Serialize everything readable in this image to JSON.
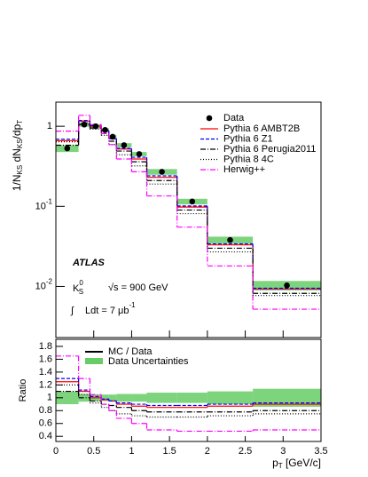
{
  "chart_data": [
    {
      "type": "step",
      "log_y": true,
      "ylabel_parts": [
        "1/N",
        "KS",
        " dN",
        "KS",
        "/dp",
        "T"
      ],
      "bins": [
        0,
        0.3,
        0.45,
        0.6,
        0.7,
        0.8,
        1.0,
        1.2,
        1.6,
        2.0,
        2.6,
        3.5
      ],
      "x": [
        0.15,
        0.375,
        0.525,
        0.65,
        0.75,
        0.9,
        1.1,
        1.4,
        1.8,
        2.3,
        3.05
      ],
      "data": {
        "name": "Data",
        "color": "#000000",
        "values": [
          0.53,
          1.05,
          1.0,
          0.9,
          0.74,
          0.58,
          0.45,
          0.27,
          0.115,
          0.038,
          0.0103
        ],
        "errors": [
          0.053,
          0.063,
          0.05,
          0.045,
          0.037,
          0.035,
          0.027,
          0.022,
          0.0092,
          0.0038,
          0.0014
        ],
        "band_color": "#66cc66"
      },
      "series": [
        {
          "name": "Pythia 6 AMBT2B",
          "color": "#ff0000",
          "dash": "none",
          "values": [
            0.66,
            1.16,
            1.0,
            0.87,
            0.7,
            0.52,
            0.39,
            0.23,
            0.098,
            0.033,
            0.0093
          ]
        },
        {
          "name": "Pythia 6 Z1",
          "color": "#0000ff",
          "dash": "4,2",
          "values": [
            0.69,
            1.18,
            1.02,
            0.88,
            0.7,
            0.53,
            0.41,
            0.24,
            0.101,
            0.034,
            0.0095
          ]
        },
        {
          "name": "Pythia 6 Perugia2011",
          "color": "#000000",
          "dash": "6,2,1,2",
          "values": [
            0.58,
            1.05,
            0.95,
            0.81,
            0.65,
            0.49,
            0.36,
            0.21,
            0.09,
            0.03,
            0.0082
          ]
        },
        {
          "name": "Pythia 8 4C",
          "color": "#000000",
          "dash": "1,2",
          "values": [
            0.64,
            1.1,
            0.92,
            0.77,
            0.59,
            0.44,
            0.32,
            0.19,
            0.081,
            0.027,
            0.0077
          ]
        },
        {
          "name": "Herwig++",
          "color": "#ff00ff",
          "dash": "6,2,1,2",
          "values": [
            0.87,
            1.37,
            1.05,
            0.81,
            0.59,
            0.39,
            0.27,
            0.135,
            0.055,
            0.018,
            0.0052
          ]
        }
      ],
      "xlim": [
        0,
        3.5
      ],
      "xticks": [
        0,
        0.5,
        1,
        1.5,
        2,
        2.5,
        3,
        3.5
      ],
      "ylim": [
        0.0023,
        2
      ],
      "yticks": [
        {
          "value": 0.01,
          "label": "10",
          "exponent": "-2"
        },
        {
          "value": 0.1,
          "label": "10",
          "exponent": "-1"
        },
        1
      ],
      "annotations": {
        "experiment": "ATLAS",
        "particle": "K",
        "particle_sub": "S",
        "particle_sup": "0",
        "energy": "√s = 900 GeV",
        "integral": "∫",
        "lumi": "Ldt = 7 μb",
        "lumi_sup": "-1"
      }
    },
    {
      "type": "ratio",
      "ylabel": "Ratio",
      "xlabel_parts": [
        "p",
        "T",
        " [GeV/c]"
      ],
      "legend": [
        "MC / Data",
        "Data Uncertainties"
      ],
      "uncertainty": [
        0.1,
        0.06,
        0.05,
        0.05,
        0.05,
        0.06,
        0.06,
        0.08,
        0.08,
        0.1,
        0.14
      ],
      "series": [
        {
          "color": "#ff0000",
          "dash": "none",
          "values": [
            1.25,
            1.1,
            1.0,
            0.97,
            0.95,
            0.9,
            0.87,
            0.85,
            0.85,
            0.87,
            0.9
          ]
        },
        {
          "color": "#0000ff",
          "dash": "4,2",
          "values": [
            1.3,
            1.12,
            1.02,
            0.98,
            0.95,
            0.92,
            0.9,
            0.88,
            0.88,
            0.9,
            0.92
          ]
        },
        {
          "color": "#000000",
          "dash": "6,2,1,2",
          "values": [
            1.1,
            1.0,
            0.95,
            0.9,
            0.88,
            0.85,
            0.8,
            0.78,
            0.78,
            0.78,
            0.8
          ]
        },
        {
          "color": "#000000",
          "dash": "1,2",
          "values": [
            1.2,
            1.05,
            0.92,
            0.85,
            0.8,
            0.75,
            0.72,
            0.7,
            0.7,
            0.72,
            0.75
          ]
        },
        {
          "color": "#ff00ff",
          "dash": "6,2,1,2",
          "values": [
            1.65,
            1.3,
            1.05,
            0.9,
            0.8,
            0.68,
            0.6,
            0.5,
            0.48,
            0.48,
            0.5
          ]
        }
      ],
      "ylim": [
        0.32,
        1.91
      ],
      "yticks": [
        0.4,
        0.6,
        0.8,
        1,
        1.2,
        1.4,
        1.6,
        1.8
      ]
    }
  ]
}
